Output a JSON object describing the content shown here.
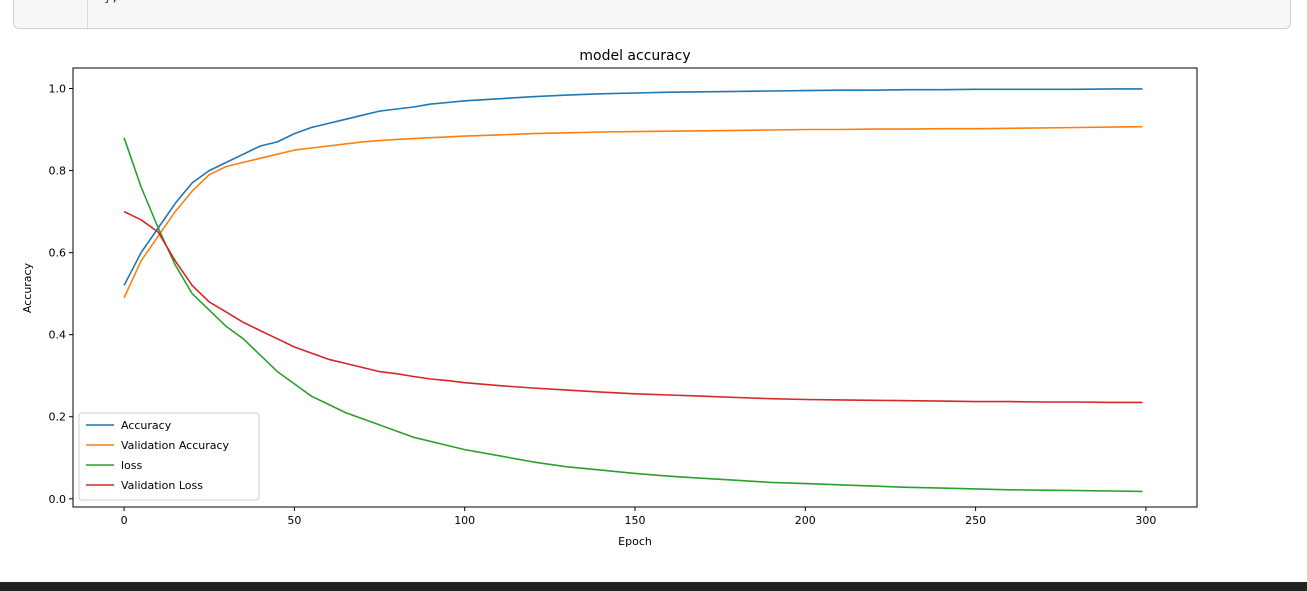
{
  "code_cell": {
    "partial_text": "};"
  },
  "chart_data": {
    "type": "line",
    "title": "model accuracy",
    "xlabel": "Epoch",
    "ylabel": "Accuracy",
    "xlim": [
      -15,
      315
    ],
    "ylim": [
      -0.02,
      1.05
    ],
    "xticks": [
      0,
      50,
      100,
      150,
      200,
      250,
      300
    ],
    "yticks": [
      0.0,
      0.2,
      0.4,
      0.6,
      0.8,
      1.0
    ],
    "xtick_labels": [
      "0",
      "50",
      "100",
      "150",
      "200",
      "250",
      "300"
    ],
    "ytick_labels": [
      "0.0",
      "0.2",
      "0.4",
      "0.6",
      "0.8",
      "1.0"
    ],
    "grid": false,
    "legend_position": "lower-left",
    "x": [
      0,
      5,
      10,
      15,
      20,
      25,
      30,
      35,
      40,
      45,
      50,
      55,
      60,
      65,
      70,
      75,
      80,
      85,
      90,
      95,
      100,
      110,
      120,
      130,
      140,
      150,
      160,
      170,
      180,
      190,
      200,
      210,
      220,
      230,
      240,
      250,
      260,
      270,
      280,
      290,
      299
    ],
    "series": [
      {
        "name": "Accuracy",
        "color": "#1f77b4",
        "values": [
          0.52,
          0.6,
          0.66,
          0.72,
          0.77,
          0.8,
          0.82,
          0.84,
          0.86,
          0.87,
          0.89,
          0.905,
          0.915,
          0.925,
          0.935,
          0.945,
          0.95,
          0.955,
          0.962,
          0.966,
          0.97,
          0.975,
          0.98,
          0.984,
          0.987,
          0.989,
          0.991,
          0.992,
          0.993,
          0.994,
          0.995,
          0.996,
          0.996,
          0.997,
          0.997,
          0.998,
          0.998,
          0.998,
          0.998,
          0.999,
          0.999
        ]
      },
      {
        "name": "Validation Accuracy",
        "color": "#ff7f0e",
        "values": [
          0.49,
          0.58,
          0.64,
          0.7,
          0.75,
          0.79,
          0.81,
          0.82,
          0.83,
          0.84,
          0.85,
          0.855,
          0.86,
          0.865,
          0.87,
          0.873,
          0.876,
          0.878,
          0.88,
          0.882,
          0.884,
          0.887,
          0.89,
          0.892,
          0.894,
          0.895,
          0.896,
          0.897,
          0.898,
          0.899,
          0.9,
          0.9,
          0.901,
          0.901,
          0.902,
          0.902,
          0.903,
          0.904,
          0.905,
          0.906,
          0.907
        ]
      },
      {
        "name": "loss",
        "color": "#2ca02c",
        "values": [
          0.88,
          0.76,
          0.66,
          0.57,
          0.5,
          0.46,
          0.42,
          0.39,
          0.35,
          0.31,
          0.28,
          0.25,
          0.23,
          0.21,
          0.195,
          0.18,
          0.165,
          0.15,
          0.14,
          0.13,
          0.12,
          0.105,
          0.09,
          0.078,
          0.07,
          0.062,
          0.055,
          0.05,
          0.045,
          0.04,
          0.037,
          0.034,
          0.031,
          0.028,
          0.026,
          0.024,
          0.022,
          0.021,
          0.02,
          0.019,
          0.018
        ]
      },
      {
        "name": "Validation Loss",
        "color": "#d62728",
        "values": [
          0.7,
          0.68,
          0.65,
          0.58,
          0.52,
          0.48,
          0.455,
          0.43,
          0.41,
          0.39,
          0.37,
          0.355,
          0.34,
          0.33,
          0.32,
          0.31,
          0.305,
          0.298,
          0.292,
          0.288,
          0.283,
          0.276,
          0.27,
          0.265,
          0.26,
          0.256,
          0.253,
          0.25,
          0.247,
          0.244,
          0.242,
          0.241,
          0.24,
          0.239,
          0.238,
          0.237,
          0.237,
          0.236,
          0.236,
          0.235,
          0.235
        ]
      }
    ]
  }
}
